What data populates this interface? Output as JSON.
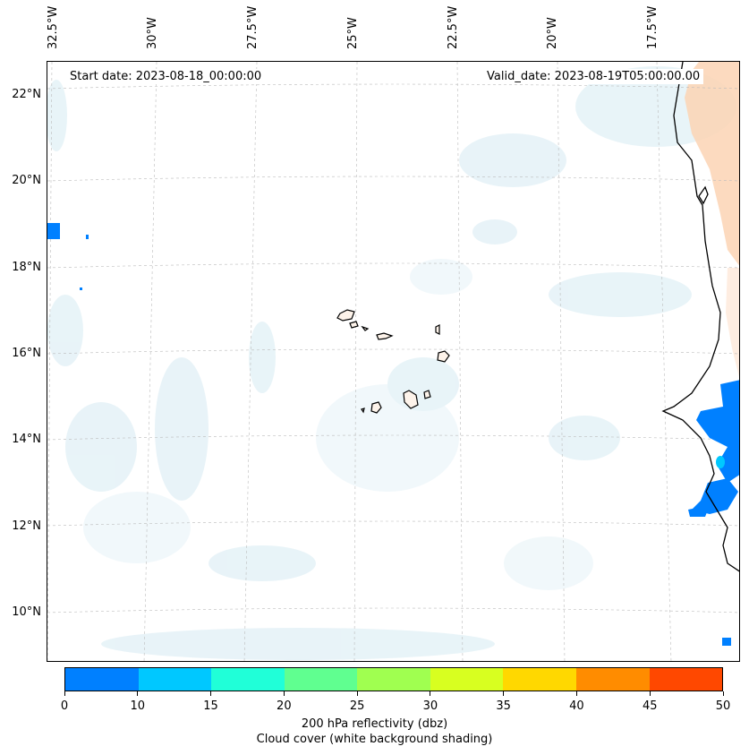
{
  "map": {
    "start_date": "Start date: 2023-08-18_00:00:00",
    "valid_date": "Valid_date: 2023-08-19T05:00:00.00",
    "longitude_labels": [
      "32.5°W",
      "30°W",
      "27.5°W",
      "25°W",
      "22.5°W",
      "20°W",
      "17.5°W"
    ],
    "latitude_labels": [
      "22°N",
      "20°N",
      "18°N",
      "16°N",
      "14°N",
      "12°N",
      "10°N"
    ]
  },
  "colorbar": {
    "ticks": [
      "0",
      "10",
      "15",
      "20",
      "25",
      "30",
      "35",
      "40",
      "45",
      "50"
    ],
    "colors": [
      "#0080ff",
      "#00c8ff",
      "#20ffd8",
      "#60ff90",
      "#a0ff50",
      "#d8ff20",
      "#ffd800",
      "#ff8c00",
      "#ff4800"
    ],
    "label_line1": "200 hPa reflectivity (dbz)",
    "label_line2": "Cloud cover (white background shading)"
  }
}
